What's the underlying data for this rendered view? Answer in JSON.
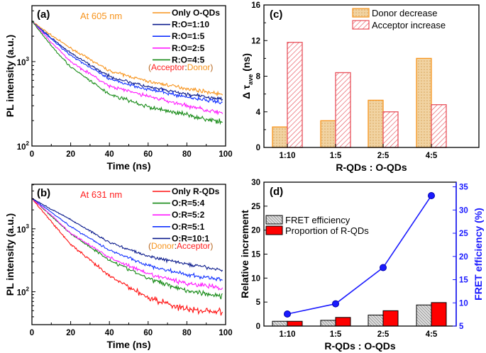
{
  "chart_data": [
    {
      "panel": "(a)",
      "type": "line",
      "annotation": "At 605 nm",
      "annotation_color": "#f7941d",
      "xlabel": "Time (ns)",
      "ylabel": "PL intensity (a.u.)",
      "xlim": [
        0,
        100
      ],
      "ylim": [
        100,
        4600
      ],
      "yscale": "log",
      "xticks": [
        "0",
        "20",
        "40",
        "60",
        "80",
        "100"
      ],
      "yticks": [
        {
          "value": 100,
          "base": "10",
          "exp": "2"
        },
        {
          "value": 1000,
          "base": "10",
          "exp": "3"
        }
      ],
      "legend_note": [
        {
          "text": "(",
          "color": "#b5651d"
        },
        {
          "text": "Acceptor",
          "color": "#ff2020"
        },
        {
          "text": ":",
          "color": "#333333"
        },
        {
          "text": "Donor",
          "color": "#f7941d"
        },
        {
          "text": ")",
          "color": "#b5651d"
        }
      ],
      "x": [
        0,
        10,
        20,
        40,
        60,
        80,
        98
      ],
      "series": [
        {
          "name": "Only O-QDs",
          "color": "#f7941d",
          "y": [
            3000,
            2050,
            1440,
            778,
            582,
            480,
            410
          ]
        },
        {
          "name": "R:O=1:10",
          "color": "#0a1a8c",
          "y": [
            3000,
            1900,
            1260,
            665,
            500,
            410,
            358
          ]
        },
        {
          "name": "R:O=1:5",
          "color": "#1030ff",
          "y": [
            3000,
            1850,
            1190,
            616,
            470,
            380,
            330
          ]
        },
        {
          "name": "R:O=2:5",
          "color": "#ff1aff",
          "y": [
            3000,
            1700,
            1000,
            510,
            390,
            300,
            245
          ]
        },
        {
          "name": "R:O=4:5",
          "color": "#168a16",
          "y": [
            3000,
            1550,
            860,
            410,
            290,
            235,
            190
          ]
        }
      ]
    },
    {
      "panel": "(b)",
      "type": "line",
      "annotation": "At 631 nm",
      "annotation_color": "#ff2020",
      "xlabel": "Time (ns)",
      "ylabel": "PL intensity (a.u.)",
      "xlim": [
        0,
        100
      ],
      "ylim": [
        30,
        5100
      ],
      "yscale": "log",
      "xticks": [
        "0",
        "20",
        "40",
        "60",
        "80",
        "100"
      ],
      "yticks": [
        {
          "value": 100,
          "base": "10",
          "exp": "2"
        },
        {
          "value": 1000,
          "base": "10",
          "exp": "3"
        }
      ],
      "legend_note": [
        {
          "text": "(",
          "color": "#b5651d"
        },
        {
          "text": "Donor",
          "color": "#f7941d"
        },
        {
          "text": ":",
          "color": "#333333"
        },
        {
          "text": "Acceptor",
          "color": "#ff2020"
        },
        {
          "text": ")",
          "color": "#b5651d"
        }
      ],
      "x": [
        0,
        10,
        20,
        40,
        60,
        80,
        98
      ],
      "series": [
        {
          "name": "Only R-QDs",
          "color": "#ff1010",
          "y": [
            3040,
            1300,
            566,
            177,
            81,
            52,
            48
          ]
        },
        {
          "name": "O:R=5:4",
          "color": "#168a16",
          "y": [
            3040,
            1600,
            835,
            320,
            162,
            105,
            85
          ]
        },
        {
          "name": "O:R=5:2",
          "color": "#ff1aff",
          "y": [
            3040,
            1650,
            850,
            350,
            190,
            136,
            115
          ]
        },
        {
          "name": "O:R=5:1",
          "color": "#1030ff",
          "y": [
            3040,
            1850,
            1080,
            460,
            260,
            185,
            155
          ]
        },
        {
          "name": "O:R=10:1",
          "color": "#0a1a8c",
          "y": [
            3040,
            2050,
            1400,
            610,
            365,
            275,
            220
          ]
        }
      ]
    },
    {
      "panel": "(c)",
      "type": "bar",
      "xlabel": "R-QDs : O-QDs",
      "ylabel_parts": [
        "Δ τ",
        "ave",
        " (ns)"
      ],
      "ylim": [
        0,
        16
      ],
      "yticks": [
        "0",
        "4",
        "8",
        "12",
        "16"
      ],
      "categories": [
        "1:10",
        "1:5",
        "2:5",
        "4:5"
      ],
      "series": [
        {
          "name": "Donor decrease",
          "color": "#f7941d",
          "fill": "#f1d3a2",
          "values": [
            2.3,
            3.0,
            5.3,
            10.0
          ]
        },
        {
          "name": "Acceptor increase",
          "color": "#e8505b",
          "fill": "#ffffff",
          "values": [
            11.8,
            8.4,
            4.0,
            4.8
          ]
        }
      ]
    },
    {
      "panel": "(d)",
      "type": "bar+line",
      "xlabel": "R-QDs : O-QDs",
      "ylabel": "Relative increment",
      "ylabel_right": "FRET efficiency (%)",
      "ylim": [
        0,
        30
      ],
      "yticks": [
        "0",
        "5",
        "10",
        "15",
        "20",
        "25",
        "30"
      ],
      "ylim_right": [
        5,
        36
      ],
      "yticks_right": [
        "5",
        "10",
        "15",
        "20",
        "25",
        "30",
        "35"
      ],
      "right_axis_color": "#1a1aff",
      "categories": [
        "1:10",
        "1:5",
        "2:5",
        "4:5"
      ],
      "series": [
        {
          "name": "FRET efficiency",
          "color": "#999999",
          "values": [
            1.0,
            1.2,
            2.3,
            4.4
          ]
        },
        {
          "name": "Proportion of R-QDs",
          "color": "#ff0000",
          "values": [
            1.0,
            1.8,
            3.2,
            4.9
          ]
        }
      ],
      "line_series": {
        "axis": "right",
        "color": "#1a1aff",
        "values": [
          7.6,
          9.8,
          17.6,
          33.1
        ]
      }
    }
  ]
}
